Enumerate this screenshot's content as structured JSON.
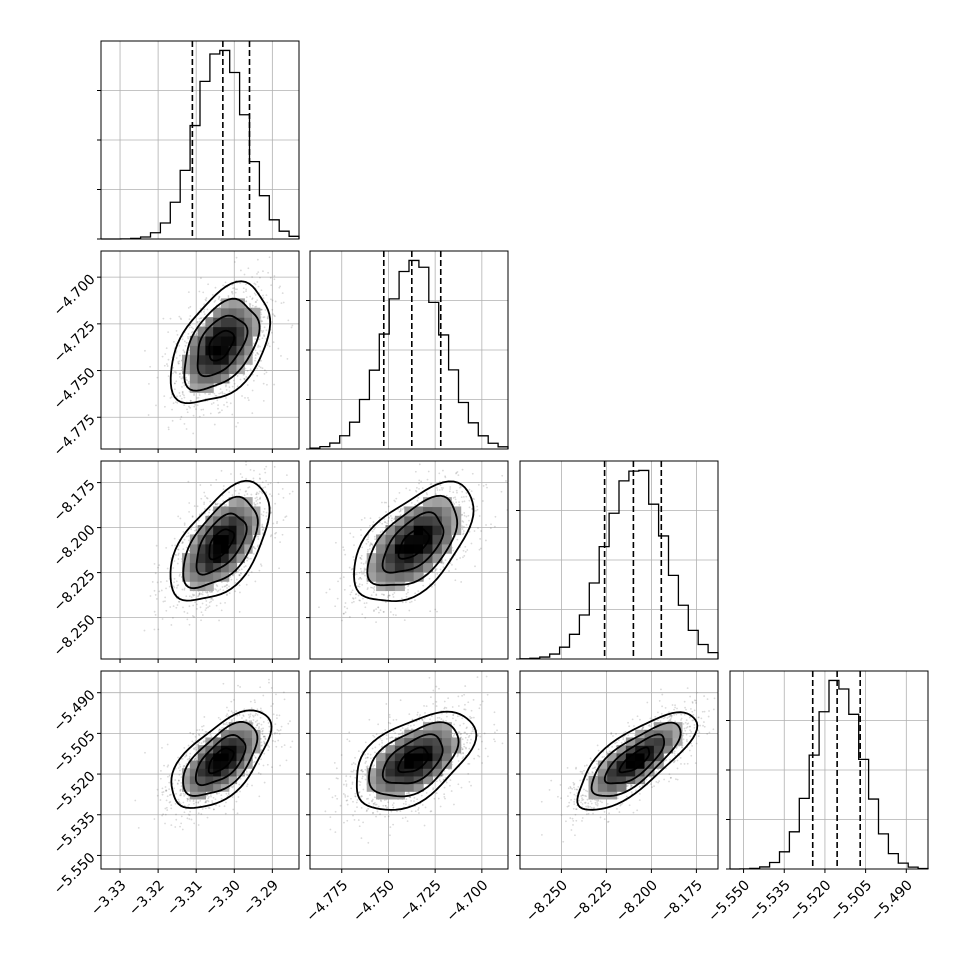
{
  "chart_data": {
    "type": "corner",
    "params": [
      {
        "mean": -3.3035,
        "sd": 0.0065,
        "range": [
          -3.335,
          -3.283
        ],
        "ticks": [
          -3.33,
          -3.32,
          -3.31,
          -3.3,
          -3.29
        ],
        "tick_labels": [
          "−3.33",
          "−3.32",
          "−3.31",
          "−3.30",
          "−3.29"
        ],
        "quantiles": [
          -3.311,
          -3.303,
          -3.296
        ]
      },
      {
        "mean": -4.7365,
        "sd": 0.016,
        "range": [
          -4.792,
          -4.686
        ],
        "ticks": [
          -4.775,
          -4.75,
          -4.725,
          -4.7
        ],
        "tick_labels": [
          "−4.775",
          "−4.750",
          "−4.725",
          "−4.700"
        ],
        "quantiles": [
          -4.7525,
          -4.7375,
          -4.722
        ]
      },
      {
        "mean": -8.209,
        "sd": 0.0165,
        "range": [
          -8.273,
          -8.163
        ],
        "ticks": [
          -8.25,
          -8.225,
          -8.2,
          -8.175
        ],
        "tick_labels": [
          "−8.250",
          "−8.225",
          "−8.200",
          "−8.175"
        ],
        "quantiles": [
          -8.226,
          -8.21,
          -8.1945
        ]
      },
      {
        "mean": -5.515,
        "sd": 0.009,
        "range": [
          -5.555,
          -5.482
        ],
        "ticks": [
          -5.55,
          -5.535,
          -5.52,
          -5.505,
          -5.49
        ],
        "tick_labels": [
          "−5.550",
          "−5.535",
          "−5.520",
          "−5.505",
          "−5.490"
        ],
        "quantiles": [
          -5.5245,
          -5.5155,
          -5.507
        ]
      }
    ],
    "correlations": [
      [
        1.0,
        0.45,
        0.55,
        0.6
      ],
      [
        0.45,
        1.0,
        0.55,
        0.5
      ],
      [
        0.55,
        0.55,
        1.0,
        0.75
      ],
      [
        0.6,
        0.5,
        0.75,
        1.0
      ]
    ],
    "histogram_bins": 20,
    "contour_levels_sigma": [
      0.5,
      1.0,
      1.5,
      2.0
    ],
    "diagonal_y_ticks": 4,
    "grid": true,
    "histogram_line": "step",
    "quantile_lines": "dashed"
  }
}
